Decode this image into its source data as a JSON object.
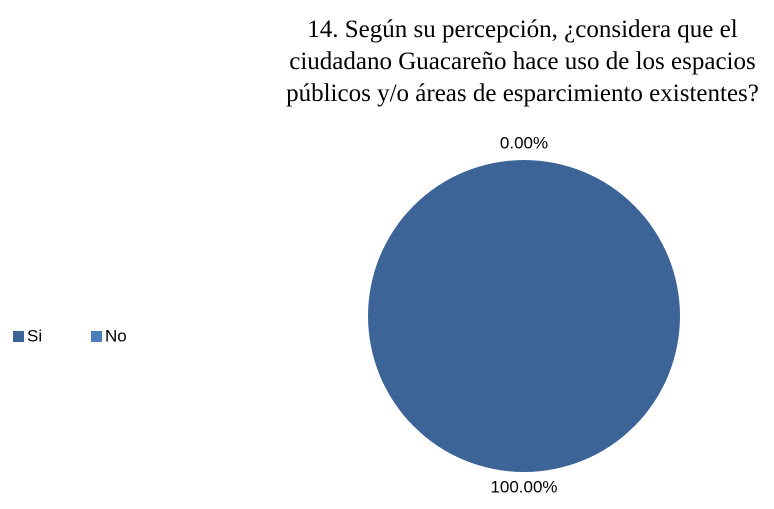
{
  "chart_data": {
    "type": "pie",
    "title": "14. Según su percepción, ¿considera que el ciudadano Guacareño hace uso de los espacios públicos y/o áreas de esparcimiento existentes?",
    "categories": [
      "Si",
      "No"
    ],
    "values": [
      100,
      0
    ],
    "value_labels": [
      "100.00%",
      "0.00%"
    ],
    "colors": [
      "#3c6496",
      "#4a7ebb"
    ],
    "legend": "left"
  }
}
